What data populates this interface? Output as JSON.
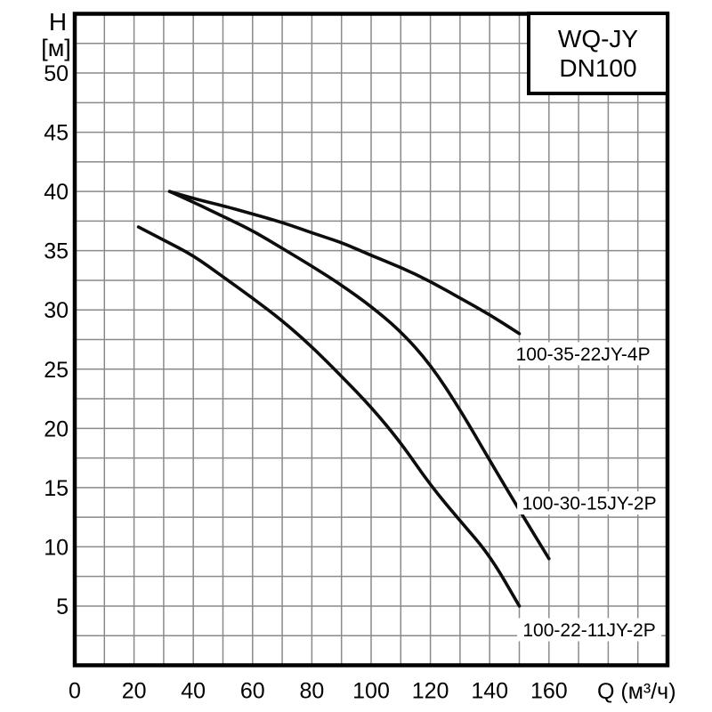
{
  "title_box": {
    "line1": "WQ-JY",
    "line2": "DN100"
  },
  "y_axis": {
    "letter": "H",
    "unit": "[м]"
  },
  "x_axis": {
    "unit_label": "Q (м³/ч)"
  },
  "chart_data": {
    "type": "line",
    "title": "WQ-JY DN100",
    "xlabel": "Q (м³/ч)",
    "ylabel": "H [м]",
    "xlim": [
      0,
      200
    ],
    "ylim": [
      0,
      55
    ],
    "x_tick_labels": [
      0,
      20,
      40,
      60,
      80,
      100,
      120,
      140,
      160
    ],
    "y_tick_labels": [
      5,
      10,
      15,
      20,
      25,
      30,
      35,
      40,
      45,
      50
    ],
    "x_minor_step": 10,
    "y_minor_step": 2.5,
    "grid": "on",
    "grid_color": "#8a8a8a",
    "border_color": "#000000",
    "curve_color": "#0d0d0d",
    "series": [
      {
        "name": "100-35-22JY-4P",
        "label_pos": [
          171.5,
          26.3
        ],
        "points": [
          [
            32,
            40
          ],
          [
            40,
            39.4
          ],
          [
            50,
            38.8
          ],
          [
            60,
            38.1
          ],
          [
            70,
            37.4
          ],
          [
            80,
            36.5
          ],
          [
            90,
            35.7
          ],
          [
            100,
            34.6
          ],
          [
            110,
            33.6
          ],
          [
            120,
            32.4
          ],
          [
            130,
            31.0
          ],
          [
            140,
            29.6
          ],
          [
            150,
            28
          ]
        ]
      },
      {
        "name": "100-30-15JY-2P",
        "label_pos": [
          173.6,
          13.7
        ],
        "points": [
          [
            32,
            40
          ],
          [
            40,
            39.1
          ],
          [
            50,
            37.9
          ],
          [
            60,
            36.7
          ],
          [
            70,
            35.2
          ],
          [
            80,
            33.7
          ],
          [
            90,
            32.1
          ],
          [
            100,
            30.3
          ],
          [
            110,
            28.2
          ],
          [
            120,
            25.4
          ],
          [
            130,
            21.6
          ],
          [
            140,
            17.3
          ],
          [
            150,
            13.1
          ],
          [
            160,
            9
          ]
        ]
      },
      {
        "name": "100-22-11JY-2P",
        "label_pos": [
          173.6,
          3.0
        ],
        "points": [
          [
            21.5,
            37
          ],
          [
            30,
            35.9
          ],
          [
            40,
            34.6
          ],
          [
            50,
            32.8
          ],
          [
            60,
            31
          ],
          [
            70,
            29.1
          ],
          [
            80,
            26.9
          ],
          [
            90,
            24.4
          ],
          [
            100,
            21.8
          ],
          [
            110,
            18.8
          ],
          [
            120,
            15.2
          ],
          [
            130,
            12.2
          ],
          [
            140,
            9.3
          ],
          [
            150,
            5
          ]
        ]
      }
    ]
  }
}
